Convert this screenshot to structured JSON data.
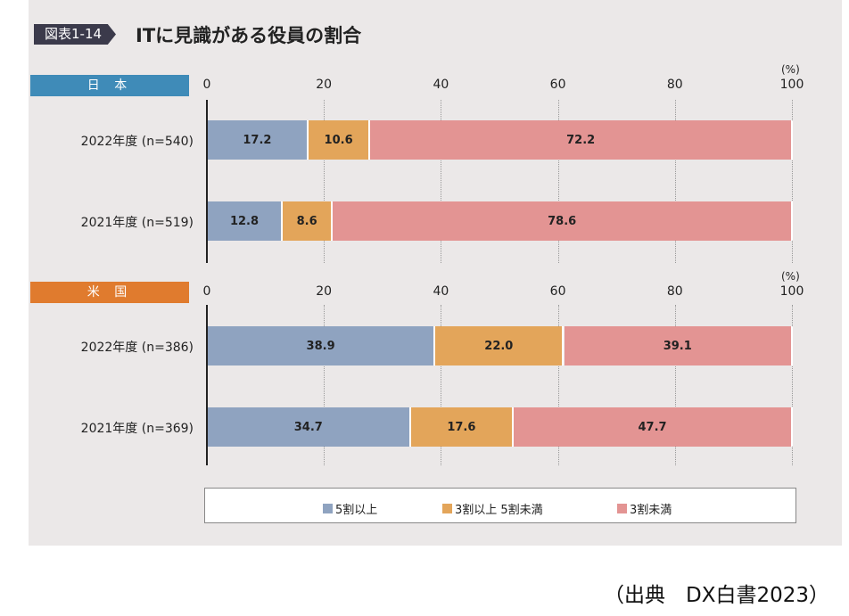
{
  "header": {
    "tag": "図表1-14",
    "title": "ITに見識がある役員の割合"
  },
  "source": "（出典　DX白書2023）",
  "colors": {
    "s1": "#8fa3c0",
    "s2": "#e3a55a",
    "s3": "#e39493",
    "japan": "#3f8bb8",
    "us": "#e07b2e"
  },
  "chart_data": [
    {
      "type": "bar",
      "stacked": true,
      "orientation": "horizontal",
      "title": "日 本",
      "unit": "(%)",
      "xlim": [
        0,
        100
      ],
      "ticks": [
        "0",
        "20",
        "40",
        "60",
        "80",
        "100"
      ],
      "categories": [
        "2022年度 (n=540)",
        "2021年度 (n=519)"
      ],
      "series": [
        {
          "name": "5割以上",
          "values": [
            17.2,
            12.8
          ]
        },
        {
          "name": "3割以上 5割未満",
          "values": [
            10.6,
            8.6
          ]
        },
        {
          "name": "3割未満",
          "values": [
            72.2,
            78.6
          ]
        }
      ]
    },
    {
      "type": "bar",
      "stacked": true,
      "orientation": "horizontal",
      "title": "米 国",
      "unit": "(%)",
      "xlim": [
        0,
        100
      ],
      "ticks": [
        "0",
        "20",
        "40",
        "60",
        "80",
        "100"
      ],
      "categories": [
        "2022年度 (n=386)",
        "2021年度 (n=369)"
      ],
      "series": [
        {
          "name": "5割以上",
          "values": [
            38.9,
            34.7
          ]
        },
        {
          "name": "3割以上 5割未満",
          "values": [
            22.0,
            17.6
          ]
        },
        {
          "name": "3割未満",
          "values": [
            39.1,
            47.7
          ]
        }
      ]
    }
  ],
  "legend": [
    "5割以上",
    "3割以上 5割未満",
    "3割未満"
  ]
}
